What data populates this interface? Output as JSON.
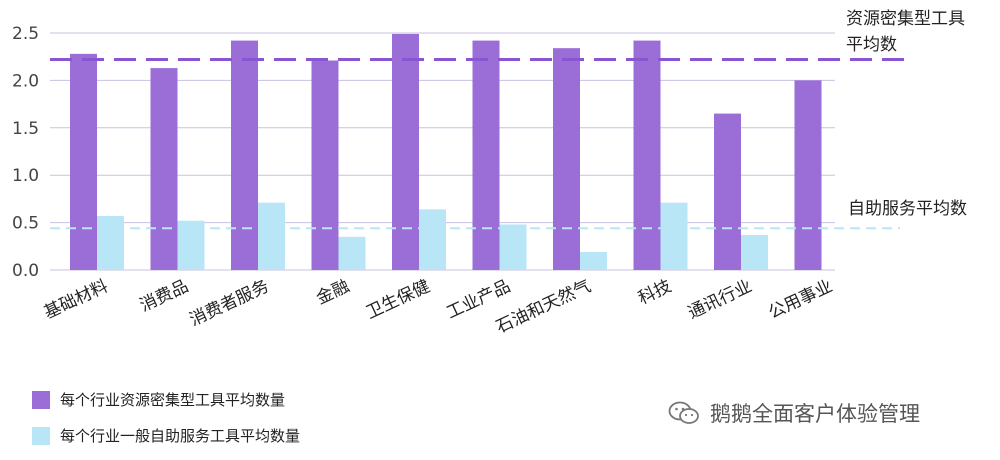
{
  "chart_data": {
    "type": "bar",
    "categories": [
      "基础材料",
      "消费品",
      "消费者服务",
      "金融",
      "卫生保健",
      "工业产品",
      "石油和天然气",
      "科技",
      "通讯行业",
      "公用事业"
    ],
    "series": [
      {
        "name": "每个行业资源密集型工具平均数量",
        "color": "#9b6dd6",
        "values": [
          2.28,
          2.13,
          2.42,
          2.21,
          2.49,
          2.42,
          2.34,
          2.42,
          1.65,
          2.0
        ]
      },
      {
        "name": "每个行业一般自助服务工具平均数量",
        "color": "#b8e6f7",
        "values": [
          0.57,
          0.52,
          0.71,
          0.35,
          0.64,
          0.48,
          0.19,
          0.71,
          0.37,
          null
        ]
      }
    ],
    "ylim": [
      0,
      2.5
    ],
    "yticks": [
      "0.0",
      "0.5",
      "1.0",
      "1.5",
      "2.0",
      "2.5"
    ],
    "reference_lines": [
      {
        "label_line1": "资源密集型工具",
        "label_line2": "平均数",
        "value": 2.22,
        "color": "#8a55d2",
        "style": "dashed"
      },
      {
        "label_line1": "自助服务平均数",
        "label_line2": "",
        "value": 0.44,
        "color": "#b8e6f7",
        "style": "dashed"
      }
    ],
    "grid": true,
    "legend_position": "bottom-left"
  },
  "watermark": {
    "text": "鹅鹅全面客户体验管理",
    "icon": "wechat-icon"
  }
}
